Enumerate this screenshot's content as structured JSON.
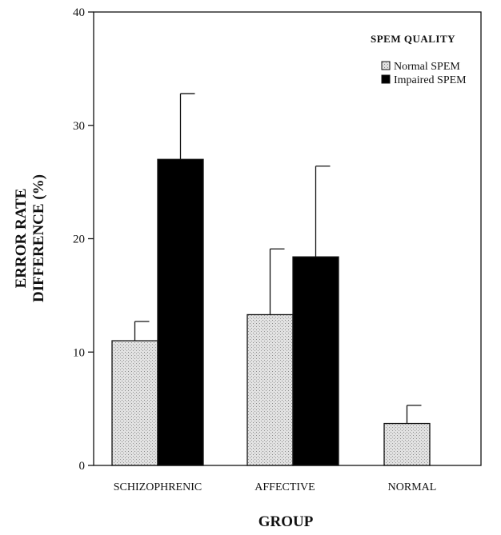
{
  "chart_data": {
    "type": "bar",
    "title": "",
    "xlabel": "GROUP",
    "ylabel_lines": [
      "ERROR RATE",
      "DIFFERENCE (%)"
    ],
    "ylim": [
      0,
      40
    ],
    "yticks": [
      "0",
      "10",
      "20",
      "30",
      "40"
    ],
    "categories": [
      "SCHIZOPHRENIC",
      "AFFECTIVE",
      "NORMAL"
    ],
    "legend": {
      "title": "SPEM QUALITY",
      "placement": "top-right"
    },
    "series": [
      {
        "name": "Normal SPEM",
        "color": "#d9d9d9",
        "pattern": "stipple",
        "values": [
          11.0,
          13.3,
          3.7
        ],
        "error_upper": [
          12.7,
          19.1,
          5.3
        ]
      },
      {
        "name": "Impaired SPEM",
        "color": "#000000",
        "values": [
          27.0,
          18.4,
          null
        ],
        "error_upper": [
          32.8,
          26.4,
          null
        ]
      }
    ]
  }
}
